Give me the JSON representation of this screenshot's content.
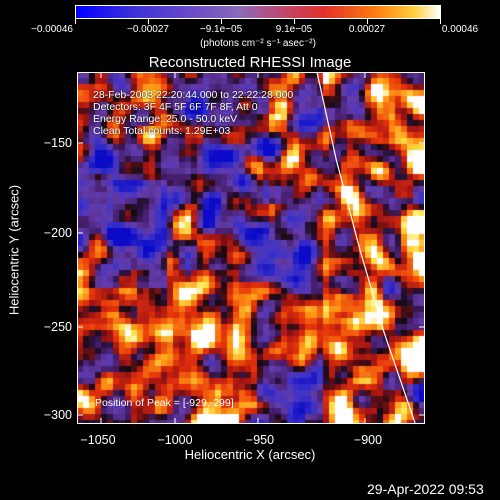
{
  "chart_data": {
    "type": "heatmap",
    "title": "Reconstructed RHESSI Image",
    "xlabel": "Heliocentric X (arcsec)",
    "ylabel": "Heliocentric Y (arcsec)",
    "xlim": [
      -1063,
      -918
    ],
    "ylim": [
      -305,
      -112
    ],
    "x_ticks": [
      -1050,
      -1000,
      -950,
      -900
    ],
    "x_tick_labels": [
      "−1050",
      "−1000",
      "−950",
      "−900"
    ],
    "y_ticks": [
      -150,
      -200,
      -250,
      -300
    ],
    "y_tick_labels": [
      "−150",
      "−200",
      "−250",
      "−300"
    ],
    "colorbar": {
      "ticks": [
        "−0.00046",
        "−0.00027",
        "−9.1e−05",
        "9.1e−05",
        "0.00027",
        "0.00046"
      ],
      "range": [
        -0.00046,
        0.00046
      ],
      "unit": "(photons cm⁻² s⁻¹ asec⁻²)"
    },
    "annotations": [
      "28-Feb-2003 22:20:44.000 to 22:22:28.000",
      "Detectors: 3F 4F 5F 6F 7F 8F, Att 0",
      "Energy Range: 25.0 - 50.0 keV",
      "Clean     Total counts: 1.29E+03"
    ],
    "peak_label": "Position of Peak = [-929,-299]",
    "peak_position": [
      -929,
      -299
    ],
    "limb_curve": [
      [
        -963,
        -112
      ],
      [
        -955,
        -160
      ],
      [
        -945,
        -210
      ],
      [
        -935,
        -255
      ],
      [
        -922,
        -305
      ]
    ]
  },
  "footer": {
    "timestamp": "29-Apr-2022 09:53"
  }
}
